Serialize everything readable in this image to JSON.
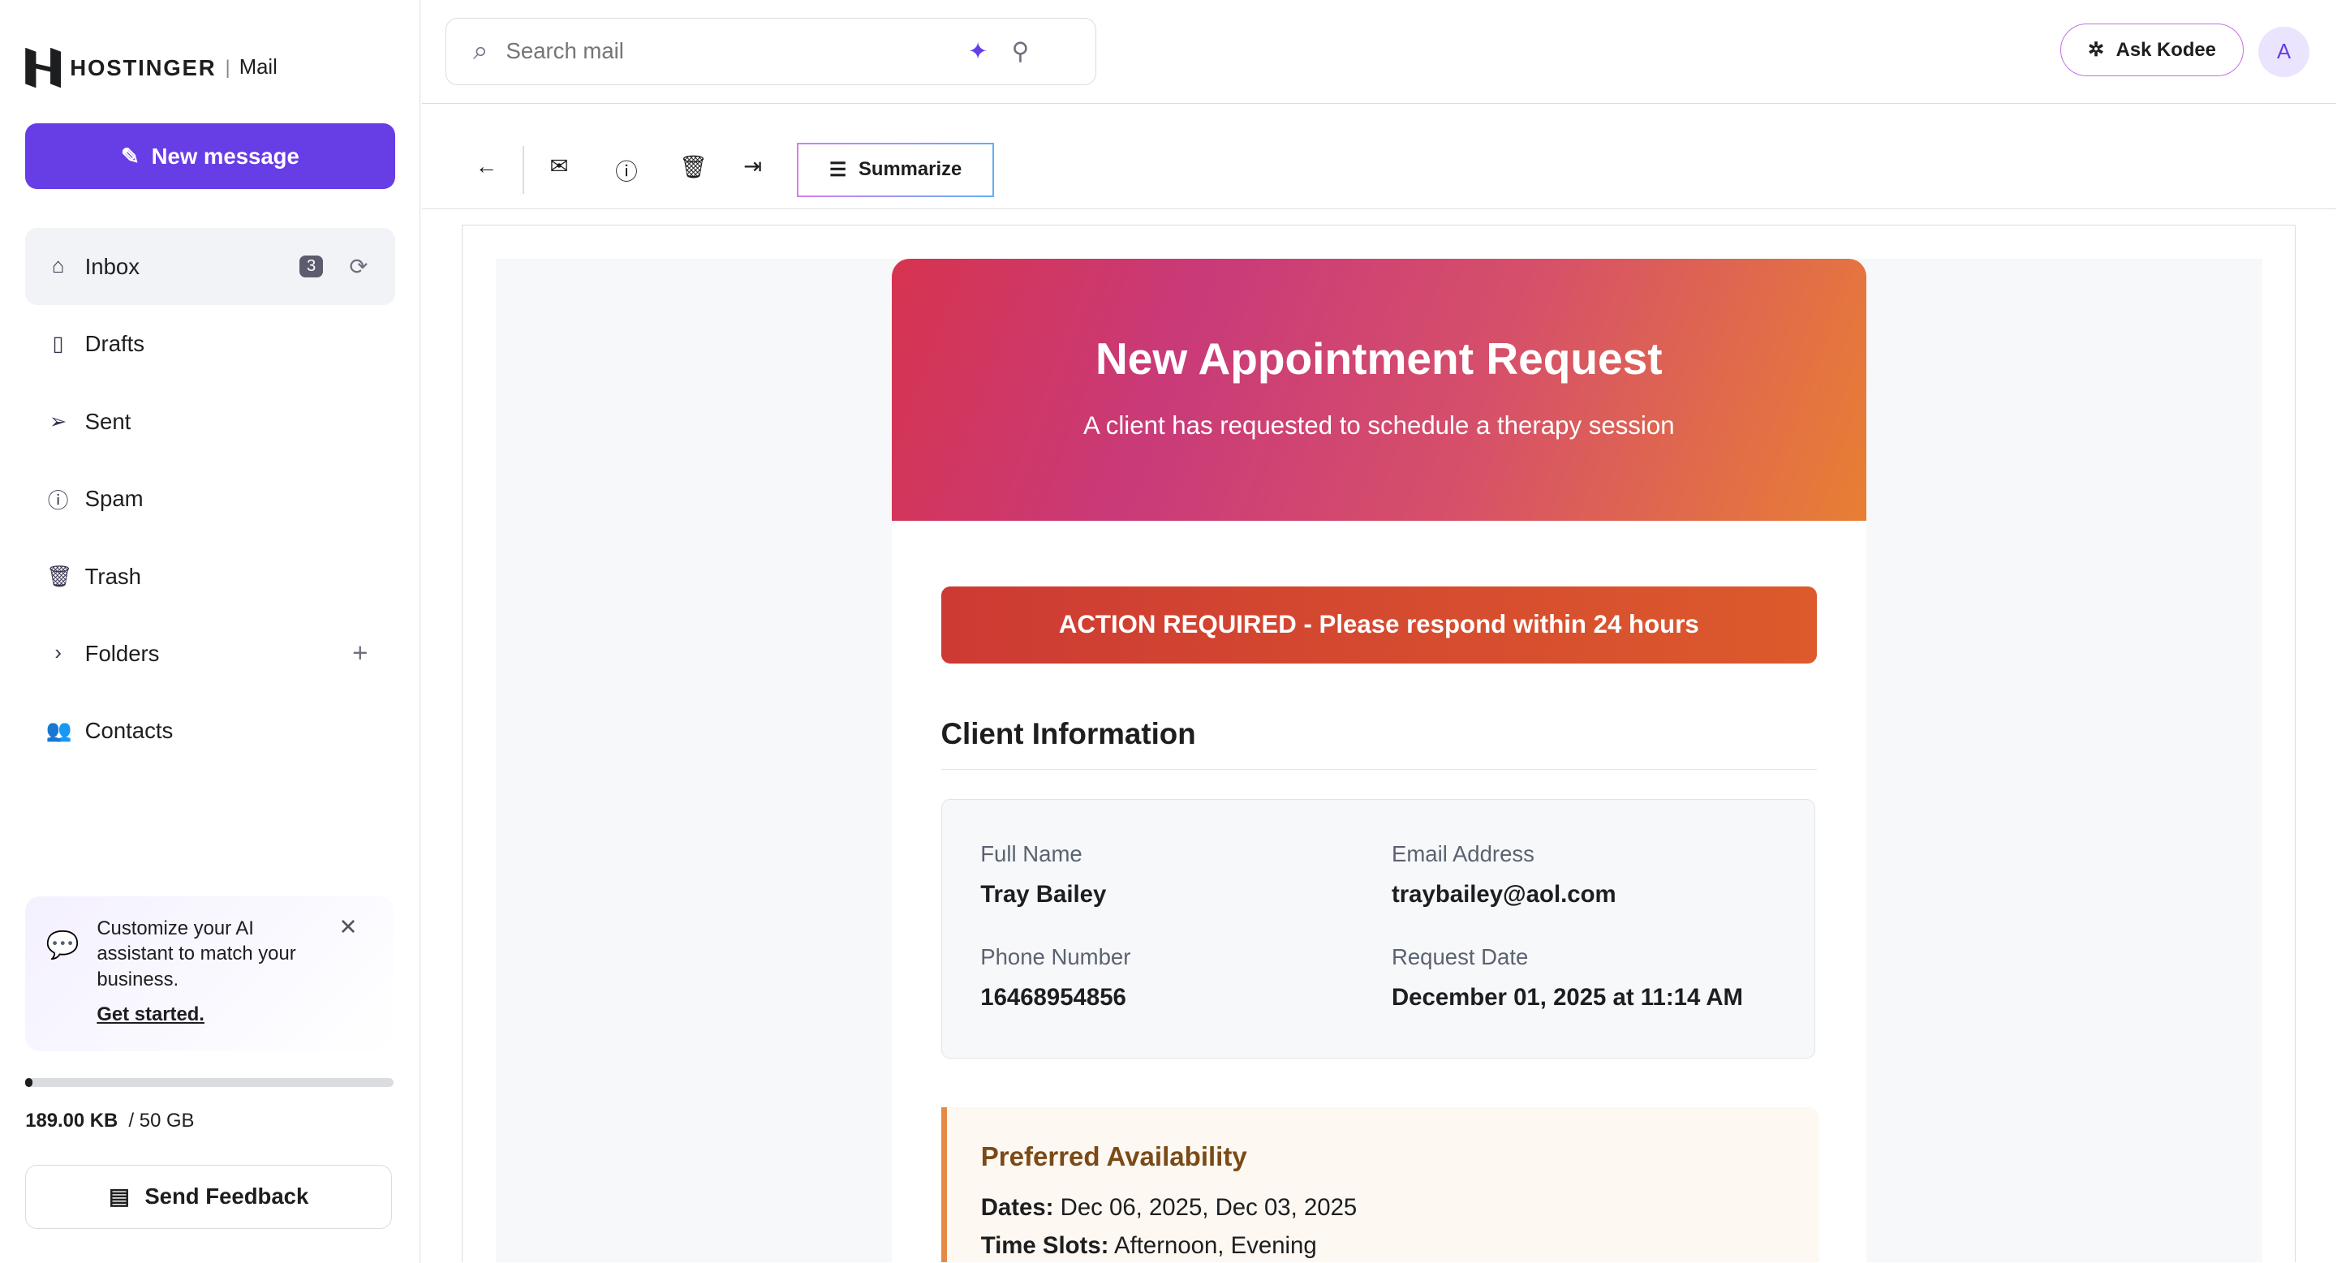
{
  "sidebar": {
    "brand": "HOSTINGER",
    "product": "Mail",
    "new_message": "New message",
    "items": [
      {
        "label": "Inbox",
        "badge": "3"
      },
      {
        "label": "Drafts"
      },
      {
        "label": "Sent"
      },
      {
        "label": "Spam"
      },
      {
        "label": "Trash"
      },
      {
        "label": "Folders"
      },
      {
        "label": "Contacts"
      }
    ],
    "promo": {
      "text": "Customize your AI assistant to match your business.",
      "link": "Get started."
    },
    "storage": {
      "used": "189.00 KB",
      "total": "/ 50 GB",
      "percent": 0.5
    },
    "feedback": "Send Feedback"
  },
  "header": {
    "search_placeholder": "Search mail",
    "ask_kodee": "Ask Kodee",
    "avatar": "A"
  },
  "toolbar": {
    "summarize": "Summarize"
  },
  "email": {
    "title": "New Appointment Request",
    "subtitle": "A client has requested to schedule a therapy session",
    "action": "ACTION REQUIRED - Please respond within 24 hours",
    "section": "Client Information",
    "fields": [
      {
        "label": "Full Name",
        "value": "Tray Bailey"
      },
      {
        "label": "Email Address",
        "value": "traybailey@aol.com"
      },
      {
        "label": "Phone Number",
        "value": "16468954856"
      },
      {
        "label": "Request Date",
        "value": "December 01, 2025 at 11:14 AM"
      }
    ],
    "availability": {
      "title": "Preferred Availability",
      "dates_label": "Dates:",
      "dates": "Dec 06, 2025, Dec 03, 2025",
      "slots_label": "Time Slots:",
      "slots": "Afternoon, Evening"
    }
  },
  "colors": {
    "accent": "#673de6",
    "action": "#cd3a33"
  }
}
